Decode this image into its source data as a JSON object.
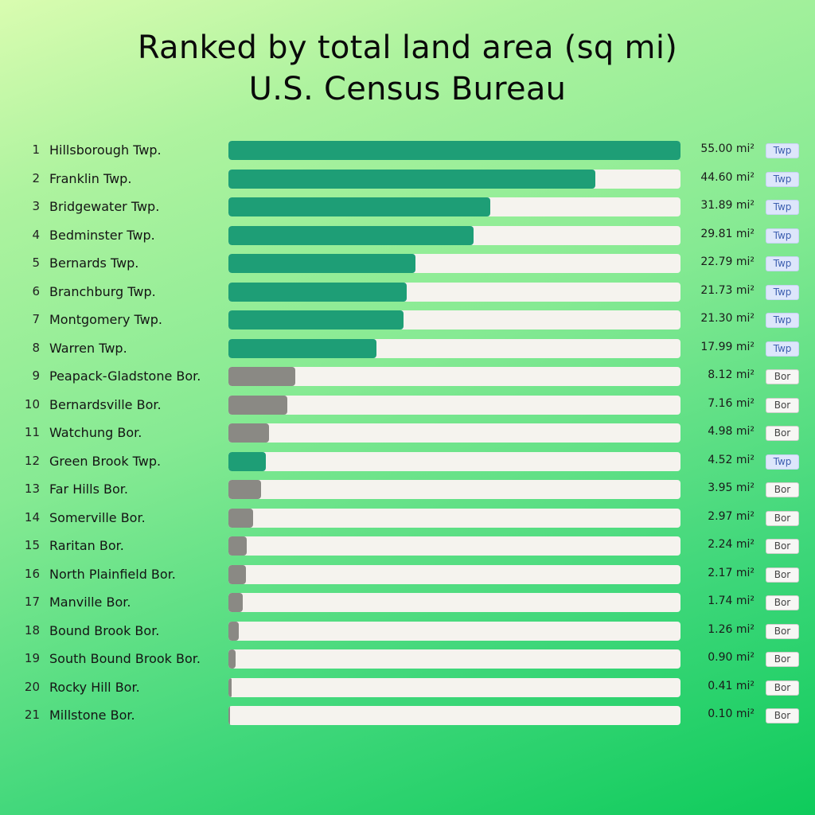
{
  "title_lines": [
    "Ranked by total land area (sq mi)",
    "U.S. Census Bureau"
  ],
  "colors": {
    "twp": "#1e9e76",
    "bor": "#8a8984",
    "track": "#f5f3ee"
  },
  "chart_data": {
    "type": "bar",
    "orientation": "horizontal",
    "title": "Ranked by total land area (sq mi)",
    "subtitle": "U.S. Census Bureau",
    "unit": "mi²",
    "xlim": [
      0,
      55
    ],
    "grid": false,
    "rows": [
      {
        "rank": "1",
        "name": "Hillsborough Twp.",
        "value": 55.0,
        "value_label": "55.00 mi²",
        "type": "Twp"
      },
      {
        "rank": "2",
        "name": "Franklin Twp.",
        "value": 44.6,
        "value_label": "44.60 mi²",
        "type": "Twp"
      },
      {
        "rank": "3",
        "name": "Bridgewater Twp.",
        "value": 31.89,
        "value_label": "31.89 mi²",
        "type": "Twp"
      },
      {
        "rank": "4",
        "name": "Bedminster Twp.",
        "value": 29.81,
        "value_label": "29.81 mi²",
        "type": "Twp"
      },
      {
        "rank": "5",
        "name": "Bernards Twp.",
        "value": 22.79,
        "value_label": "22.79 mi²",
        "type": "Twp"
      },
      {
        "rank": "6",
        "name": "Branchburg Twp.",
        "value": 21.73,
        "value_label": "21.73 mi²",
        "type": "Twp"
      },
      {
        "rank": "7",
        "name": "Montgomery Twp.",
        "value": 21.3,
        "value_label": "21.30 mi²",
        "type": "Twp"
      },
      {
        "rank": "8",
        "name": "Warren Twp.",
        "value": 17.99,
        "value_label": "17.99 mi²",
        "type": "Twp"
      },
      {
        "rank": "9",
        "name": "Peapack-Gladstone Bor.",
        "value": 8.12,
        "value_label": "8.12 mi²",
        "type": "Bor"
      },
      {
        "rank": "10",
        "name": "Bernardsville Bor.",
        "value": 7.16,
        "value_label": "7.16 mi²",
        "type": "Bor"
      },
      {
        "rank": "11",
        "name": "Watchung Bor.",
        "value": 4.98,
        "value_label": "4.98 mi²",
        "type": "Bor"
      },
      {
        "rank": "12",
        "name": "Green Brook Twp.",
        "value": 4.52,
        "value_label": "4.52 mi²",
        "type": "Twp"
      },
      {
        "rank": "13",
        "name": "Far Hills Bor.",
        "value": 3.95,
        "value_label": "3.95 mi²",
        "type": "Bor"
      },
      {
        "rank": "14",
        "name": "Somerville Bor.",
        "value": 2.97,
        "value_label": "2.97 mi²",
        "type": "Bor"
      },
      {
        "rank": "15",
        "name": "Raritan Bor.",
        "value": 2.24,
        "value_label": "2.24 mi²",
        "type": "Bor"
      },
      {
        "rank": "16",
        "name": "North Plainfield Bor.",
        "value": 2.17,
        "value_label": "2.17 mi²",
        "type": "Bor"
      },
      {
        "rank": "17",
        "name": "Manville Bor.",
        "value": 1.74,
        "value_label": "1.74 mi²",
        "type": "Bor"
      },
      {
        "rank": "18",
        "name": "Bound Brook Bor.",
        "value": 1.26,
        "value_label": "1.26 mi²",
        "type": "Bor"
      },
      {
        "rank": "19",
        "name": "South Bound Brook Bor.",
        "value": 0.9,
        "value_label": "0.90 mi²",
        "type": "Bor"
      },
      {
        "rank": "20",
        "name": "Rocky Hill Bor.",
        "value": 0.41,
        "value_label": "0.41 mi²",
        "type": "Bor"
      },
      {
        "rank": "21",
        "name": "Millstone Bor.",
        "value": 0.1,
        "value_label": "0.10 mi²",
        "type": "Bor"
      }
    ]
  }
}
